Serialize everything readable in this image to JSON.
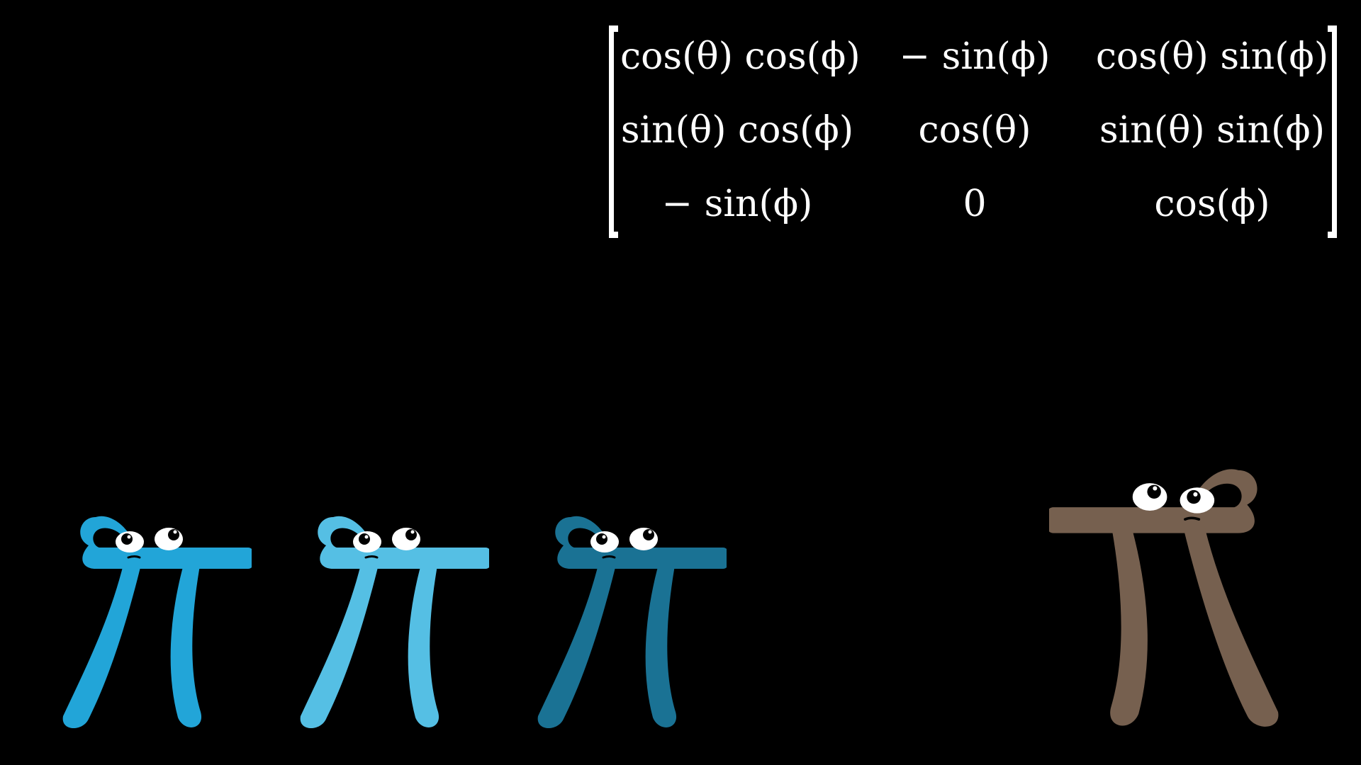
{
  "matrix": {
    "rows": [
      [
        "cos(θ) cos(ϕ)",
        "− sin(ϕ)",
        "cos(θ) sin(ϕ)"
      ],
      [
        "sin(θ) cos(ϕ)",
        "cos(θ)",
        "sin(θ) sin(ϕ)"
      ],
      [
        "− sin(ϕ)",
        "0",
        "cos(ϕ)"
      ]
    ]
  },
  "characters": [
    {
      "name": "pi-creature-blue",
      "body_color": "#22A5D8",
      "facing": "left"
    },
    {
      "name": "pi-creature-light-blue",
      "body_color": "#55BFE4",
      "facing": "left"
    },
    {
      "name": "pi-creature-dark-blue",
      "body_color": "#1A7294",
      "facing": "left"
    },
    {
      "name": "pi-creature-brown",
      "body_color": "#76604F",
      "facing": "right"
    }
  ],
  "colors": {
    "background": "#000000",
    "text": "#FFFFFF",
    "eye_white": "#FFFFFF",
    "pupil": "#000000"
  }
}
